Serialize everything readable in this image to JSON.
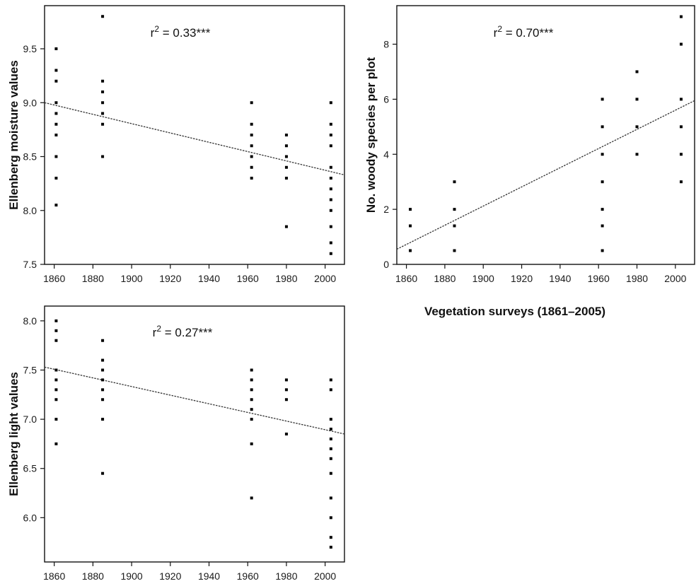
{
  "shared_xlabel": "Vegetation surveys (1861–2005)",
  "chart_data": [
    {
      "type": "scatter",
      "panel": "top-left",
      "title": "",
      "xlabel": "",
      "ylabel": "Ellenberg moisture values",
      "xlim": [
        1855,
        2010
      ],
      "ylim": [
        7.5,
        9.9
      ],
      "xticks": [
        1860,
        1880,
        1900,
        1920,
        1940,
        1960,
        1980,
        2000
      ],
      "yticks": [
        7.5,
        8.0,
        8.5,
        9.0,
        9.5
      ],
      "ytick_labels": [
        "7.5",
        "8.0",
        "8.5",
        "9.0",
        "9.5"
      ],
      "grid": false,
      "annotation": "r² = 0.33***",
      "trend": {
        "x": [
          1855,
          2010
        ],
        "y": [
          9.0,
          8.33
        ]
      },
      "points": [
        {
          "x": 1861,
          "y": 9.5
        },
        {
          "x": 1861,
          "y": 9.3
        },
        {
          "x": 1861,
          "y": 9.2
        },
        {
          "x": 1861,
          "y": 9.0
        },
        {
          "x": 1861,
          "y": 8.9
        },
        {
          "x": 1861,
          "y": 8.8
        },
        {
          "x": 1861,
          "y": 8.7
        },
        {
          "x": 1861,
          "y": 8.5
        },
        {
          "x": 1861,
          "y": 8.3
        },
        {
          "x": 1861,
          "y": 8.05
        },
        {
          "x": 1885,
          "y": 9.8
        },
        {
          "x": 1885,
          "y": 9.2
        },
        {
          "x": 1885,
          "y": 9.1
        },
        {
          "x": 1885,
          "y": 9.0
        },
        {
          "x": 1885,
          "y": 8.9
        },
        {
          "x": 1885,
          "y": 8.8
        },
        {
          "x": 1885,
          "y": 8.5
        },
        {
          "x": 1962,
          "y": 9.0
        },
        {
          "x": 1962,
          "y": 8.8
        },
        {
          "x": 1962,
          "y": 8.7
        },
        {
          "x": 1962,
          "y": 8.6
        },
        {
          "x": 1962,
          "y": 8.5
        },
        {
          "x": 1962,
          "y": 8.4
        },
        {
          "x": 1962,
          "y": 8.3
        },
        {
          "x": 1980,
          "y": 8.7
        },
        {
          "x": 1980,
          "y": 8.6
        },
        {
          "x": 1980,
          "y": 8.5
        },
        {
          "x": 1980,
          "y": 8.4
        },
        {
          "x": 1980,
          "y": 8.3
        },
        {
          "x": 1980,
          "y": 7.85
        },
        {
          "x": 2003,
          "y": 9.0
        },
        {
          "x": 2003,
          "y": 8.8
        },
        {
          "x": 2003,
          "y": 8.7
        },
        {
          "x": 2003,
          "y": 8.6
        },
        {
          "x": 2003,
          "y": 8.4
        },
        {
          "x": 2003,
          "y": 8.3
        },
        {
          "x": 2003,
          "y": 8.2
        },
        {
          "x": 2003,
          "y": 8.1
        },
        {
          "x": 2003,
          "y": 8.0
        },
        {
          "x": 2003,
          "y": 7.85
        },
        {
          "x": 2003,
          "y": 7.7
        },
        {
          "x": 2003,
          "y": 7.6
        }
      ]
    },
    {
      "type": "scatter",
      "panel": "top-right",
      "title": "",
      "xlabel": "",
      "ylabel": "No. woody species per plot",
      "xlim": [
        1855,
        2010
      ],
      "ylim": [
        0,
        9.4
      ],
      "xticks": [
        1860,
        1880,
        1900,
        1920,
        1940,
        1960,
        1980,
        2000
      ],
      "yticks": [
        0,
        2,
        4,
        6,
        8
      ],
      "ytick_labels": [
        "0",
        "2",
        "4",
        "6",
        "8"
      ],
      "grid": false,
      "annotation": "r² = 0.70***",
      "trend": {
        "x": [
          1855,
          2010
        ],
        "y": [
          0.55,
          5.95
        ]
      },
      "points": [
        {
          "x": 1862,
          "y": 2
        },
        {
          "x": 1862,
          "y": 1.4
        },
        {
          "x": 1862,
          "y": 0.5
        },
        {
          "x": 1885,
          "y": 3
        },
        {
          "x": 1885,
          "y": 2
        },
        {
          "x": 1885,
          "y": 1.4
        },
        {
          "x": 1885,
          "y": 0.5
        },
        {
          "x": 1962,
          "y": 6
        },
        {
          "x": 1962,
          "y": 5
        },
        {
          "x": 1962,
          "y": 4
        },
        {
          "x": 1962,
          "y": 3
        },
        {
          "x": 1962,
          "y": 2
        },
        {
          "x": 1962,
          "y": 1.4
        },
        {
          "x": 1962,
          "y": 0.5
        },
        {
          "x": 1980,
          "y": 7
        },
        {
          "x": 1980,
          "y": 6
        },
        {
          "x": 1980,
          "y": 5
        },
        {
          "x": 1980,
          "y": 4
        },
        {
          "x": 2003,
          "y": 9
        },
        {
          "x": 2003,
          "y": 8
        },
        {
          "x": 2003,
          "y": 6
        },
        {
          "x": 2003,
          "y": 5
        },
        {
          "x": 2003,
          "y": 4
        },
        {
          "x": 2003,
          "y": 3
        }
      ]
    },
    {
      "type": "scatter",
      "panel": "bottom-left",
      "title": "",
      "xlabel": "",
      "ylabel": "Ellenberg light values",
      "xlim": [
        1855,
        2010
      ],
      "ylim": [
        5.55,
        8.15
      ],
      "xticks": [
        1860,
        1880,
        1900,
        1920,
        1940,
        1960,
        1980,
        2000
      ],
      "yticks": [
        6.0,
        6.5,
        7.0,
        7.5,
        8.0
      ],
      "ytick_labels": [
        "6.0",
        "6.5",
        "7.0",
        "7.5",
        "8.0"
      ],
      "grid": false,
      "annotation": "r² = 0.27***",
      "trend": {
        "x": [
          1855,
          2010
        ],
        "y": [
          7.53,
          6.85
        ]
      },
      "points": [
        {
          "x": 1861,
          "y": 8.0
        },
        {
          "x": 1861,
          "y": 7.9
        },
        {
          "x": 1861,
          "y": 7.8
        },
        {
          "x": 1861,
          "y": 7.5
        },
        {
          "x": 1861,
          "y": 7.4
        },
        {
          "x": 1861,
          "y": 7.3
        },
        {
          "x": 1861,
          "y": 7.2
        },
        {
          "x": 1861,
          "y": 7.0
        },
        {
          "x": 1861,
          "y": 6.75
        },
        {
          "x": 1885,
          "y": 7.8
        },
        {
          "x": 1885,
          "y": 7.6
        },
        {
          "x": 1885,
          "y": 7.5
        },
        {
          "x": 1885,
          "y": 7.4
        },
        {
          "x": 1885,
          "y": 7.3
        },
        {
          "x": 1885,
          "y": 7.2
        },
        {
          "x": 1885,
          "y": 7.0
        },
        {
          "x": 1885,
          "y": 6.45
        },
        {
          "x": 1962,
          "y": 7.5
        },
        {
          "x": 1962,
          "y": 7.4
        },
        {
          "x": 1962,
          "y": 7.3
        },
        {
          "x": 1962,
          "y": 7.2
        },
        {
          "x": 1962,
          "y": 7.1
        },
        {
          "x": 1962,
          "y": 7.0
        },
        {
          "x": 1962,
          "y": 6.75
        },
        {
          "x": 1962,
          "y": 6.2
        },
        {
          "x": 1980,
          "y": 7.4
        },
        {
          "x": 1980,
          "y": 7.3
        },
        {
          "x": 1980,
          "y": 7.2
        },
        {
          "x": 1980,
          "y": 6.85
        },
        {
          "x": 2003,
          "y": 7.4
        },
        {
          "x": 2003,
          "y": 7.3
        },
        {
          "x": 2003,
          "y": 7.0
        },
        {
          "x": 2003,
          "y": 6.9
        },
        {
          "x": 2003,
          "y": 6.8
        },
        {
          "x": 2003,
          "y": 6.7
        },
        {
          "x": 2003,
          "y": 6.6
        },
        {
          "x": 2003,
          "y": 6.45
        },
        {
          "x": 2003,
          "y": 6.2
        },
        {
          "x": 2003,
          "y": 6.0
        },
        {
          "x": 2003,
          "y": 5.8
        },
        {
          "x": 2003,
          "y": 5.7
        }
      ]
    }
  ]
}
